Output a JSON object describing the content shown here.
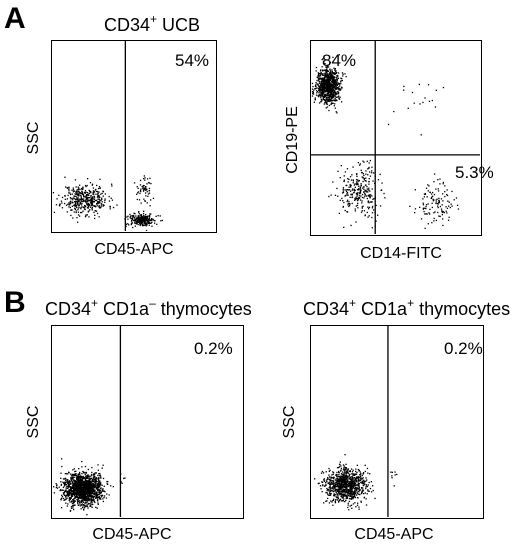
{
  "panels": {
    "a": {
      "letter": "A"
    },
    "b": {
      "letter": "B"
    }
  },
  "chart_data": [
    {
      "type": "scatter",
      "title_main": "CD34",
      "title_sup": "+",
      "title_rest": " UCB",
      "xlabel": "CD45-APC",
      "ylabel": "SSC",
      "gates": {
        "vertical_at": 0.45,
        "horizontal_at": null
      },
      "annotations": [
        {
          "text": "54%",
          "region": "right"
        }
      ],
      "clusters": [
        {
          "cx": 0.2,
          "cy": 0.17,
          "sx": 0.14,
          "sy": 0.08,
          "n": 420,
          "seed": 11
        },
        {
          "cx": 0.55,
          "cy": 0.06,
          "sx": 0.08,
          "sy": 0.035,
          "n": 260,
          "seed": 12
        },
        {
          "cx": 0.56,
          "cy": 0.22,
          "sx": 0.05,
          "sy": 0.07,
          "n": 60,
          "seed": 13
        }
      ]
    },
    {
      "type": "scatter",
      "title_main": "",
      "title_sup": "",
      "title_rest": "",
      "xlabel": "CD14-FITC",
      "ylabel": "CD19-PE",
      "gates": {
        "vertical_at": 0.38,
        "horizontal_at": 0.41
      },
      "annotations": [
        {
          "text": "84%",
          "region": "top-left"
        },
        {
          "text": "5.3%",
          "region": "bottom-right"
        }
      ],
      "clusters": [
        {
          "cx": 0.1,
          "cy": 0.77,
          "sx": 0.07,
          "sy": 0.09,
          "n": 900,
          "seed": 21
        },
        {
          "cx": 0.28,
          "cy": 0.22,
          "sx": 0.12,
          "sy": 0.13,
          "n": 280,
          "seed": 22
        },
        {
          "cx": 0.73,
          "cy": 0.16,
          "sx": 0.11,
          "sy": 0.1,
          "n": 120,
          "seed": 23
        },
        {
          "cx": 0.6,
          "cy": 0.68,
          "sx": 0.18,
          "sy": 0.14,
          "n": 18,
          "seed": 24
        }
      ]
    },
    {
      "type": "scatter",
      "title_main": "CD34",
      "title_sup": "+",
      "title_rest": " CD1a",
      "title_sup2": "–",
      "title_rest2": " thymocytes",
      "xlabel": "CD45-APC",
      "ylabel": "SSC",
      "gates": {
        "vertical_at": 0.36,
        "horizontal_at": null
      },
      "annotations": [
        {
          "text": "0.2%",
          "region": "right"
        }
      ],
      "clusters": [
        {
          "cx": 0.16,
          "cy": 0.15,
          "sx": 0.1,
          "sy": 0.08,
          "n": 1500,
          "seed": 31
        },
        {
          "cx": 0.37,
          "cy": 0.2,
          "sx": 0.03,
          "sy": 0.03,
          "n": 6,
          "seed": 32
        }
      ]
    },
    {
      "type": "scatter",
      "title_main": "CD34",
      "title_sup": "+",
      "title_rest": " CD1a",
      "title_sup2": "+",
      "title_rest2": " thymocytes",
      "xlabel": "CD45-APC",
      "ylabel": "SSC",
      "gates": {
        "vertical_at": 0.45,
        "horizontal_at": null
      },
      "annotations": [
        {
          "text": "0.2%",
          "region": "right"
        }
      ],
      "clusters": [
        {
          "cx": 0.2,
          "cy": 0.17,
          "sx": 0.12,
          "sy": 0.09,
          "n": 900,
          "seed": 41
        },
        {
          "cx": 0.46,
          "cy": 0.22,
          "sx": 0.04,
          "sy": 0.04,
          "n": 8,
          "seed": 42
        }
      ]
    }
  ]
}
